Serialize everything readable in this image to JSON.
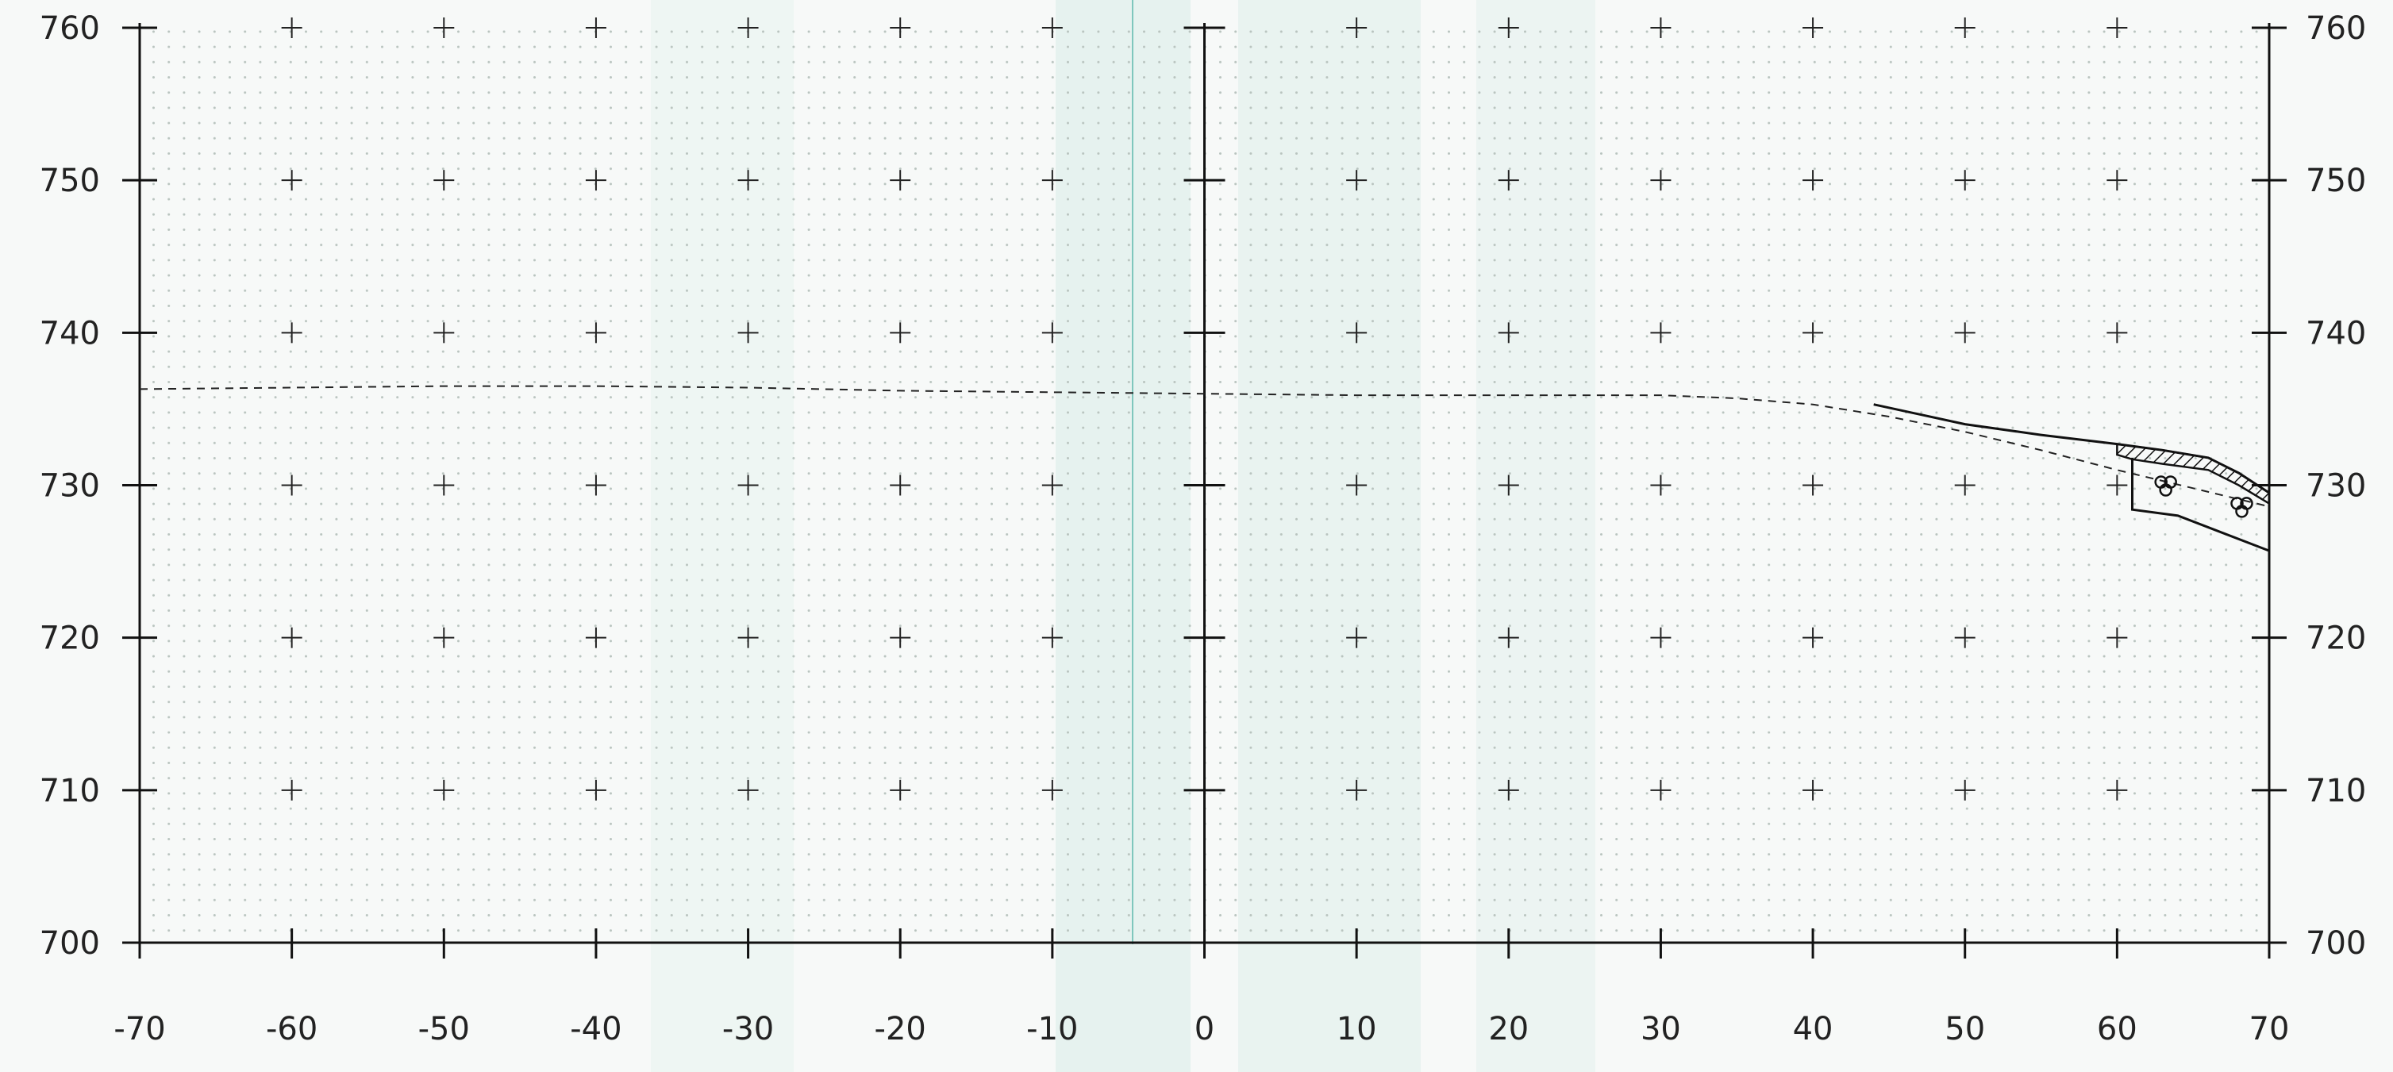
{
  "colors": {
    "paper": "#f7f9f8",
    "grid_dots": "#b9c4bf",
    "band": "#d8ece7",
    "seam": "#7fc7bd",
    "ink": "#111111"
  },
  "chart_data": {
    "type": "line",
    "title": "",
    "xlabel": "",
    "ylabel": "",
    "xlim": [
      -70,
      70
    ],
    "ylim": [
      700,
      760
    ],
    "x_ticks": [
      -70,
      -60,
      -50,
      -40,
      -30,
      -20,
      -10,
      0,
      10,
      20,
      30,
      40,
      50,
      60,
      70
    ],
    "x_tick_labels": [
      "-70",
      "-60",
      "-50",
      "-40",
      "-30",
      "-20",
      "-10",
      "0",
      "10",
      "20",
      "30",
      "40",
      "50",
      "60",
      "70"
    ],
    "y_ticks": [
      700,
      710,
      720,
      730,
      740,
      750,
      760
    ],
    "y_tick_labels": [
      "700",
      "710",
      "720",
      "730",
      "740",
      "750",
      "760"
    ],
    "grid": "dotted with cross markers every 10 units",
    "series": [
      {
        "style": "dashed",
        "x": [
          -70,
          -60,
          -50,
          -40,
          -30,
          -20,
          -10,
          0,
          10,
          20,
          30,
          35,
          40,
          45,
          50,
          55,
          60,
          65,
          70
        ],
        "y": [
          736.3,
          736.4,
          736.5,
          736.5,
          736.4,
          736.2,
          736.1,
          736.0,
          735.9,
          735.9,
          735.9,
          735.7,
          735.3,
          734.5,
          733.5,
          732.3,
          731.0,
          729.8,
          728.6
        ]
      },
      {
        "style": "solid",
        "x": [
          44,
          50,
          55,
          60,
          63,
          66,
          68,
          70
        ],
        "y": [
          735.3,
          734.0,
          733.3,
          732.7,
          732.3,
          731.8,
          730.8,
          729.5
        ]
      },
      {
        "style": "solid",
        "x": [
          61,
          61,
          64,
          70
        ],
        "y": [
          731.8,
          728.4,
          728.0,
          725.7
        ]
      }
    ]
  }
}
